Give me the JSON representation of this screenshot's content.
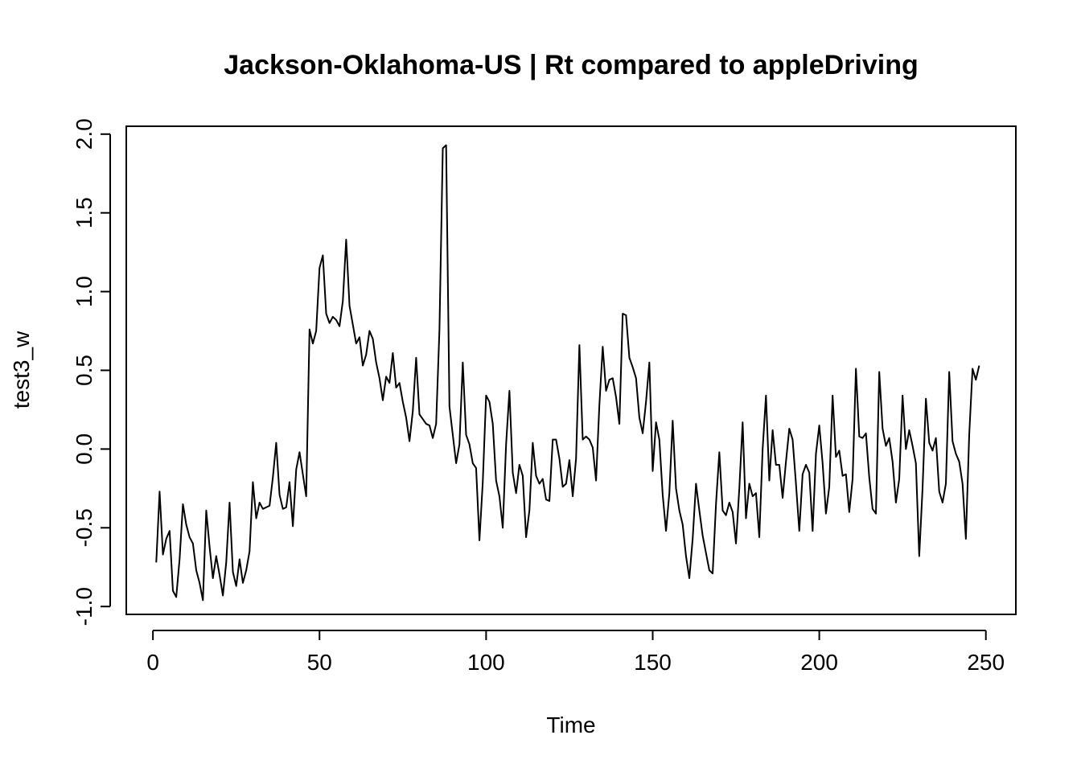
{
  "chart_data": {
    "type": "line",
    "title": "Jackson-Oklahoma-US | Rt compared to appleDriving",
    "xlabel": "Time",
    "ylabel": "test3_w",
    "xlim": [
      -8,
      259
    ],
    "ylim": [
      -1.05,
      2.05
    ],
    "x_ticks": [
      0,
      50,
      100,
      150,
      200,
      250
    ],
    "y_ticks": [
      -1.0,
      -0.5,
      0.0,
      0.5,
      1.0,
      1.5,
      2.0
    ],
    "x_tick_labels": [
      "0",
      "50",
      "100",
      "150",
      "200",
      "250"
    ],
    "y_tick_labels": [
      "-1.0",
      "-0.5",
      "0.0",
      "0.5",
      "1.0",
      "1.5",
      "2.0"
    ],
    "grid": false,
    "series": [
      {
        "color": "#000000",
        "x": [
          1,
          2,
          3,
          4,
          5,
          6,
          7,
          8,
          9,
          10,
          11,
          12,
          13,
          14,
          15,
          16,
          17,
          18,
          19,
          20,
          21,
          22,
          23,
          24,
          25,
          26,
          27,
          28,
          29,
          30,
          31,
          32,
          33,
          34,
          35,
          36,
          37,
          38,
          39,
          40,
          41,
          42,
          43,
          44,
          45,
          46,
          47,
          48,
          49,
          50,
          51,
          52,
          53,
          54,
          55,
          56,
          57,
          58,
          59,
          60,
          61,
          62,
          63,
          64,
          65,
          66,
          67,
          68,
          69,
          70,
          71,
          72,
          73,
          74,
          75,
          76,
          77,
          78,
          79,
          80,
          81,
          82,
          83,
          84,
          85,
          86,
          87,
          88,
          89,
          90,
          91,
          92,
          93,
          94,
          95,
          96,
          97,
          98,
          99,
          100,
          101,
          102,
          103,
          104,
          105,
          106,
          107,
          108,
          109,
          110,
          111,
          112,
          113,
          114,
          115,
          116,
          117,
          118,
          119,
          120,
          121,
          122,
          123,
          124,
          125,
          126,
          127,
          128,
          129,
          130,
          131,
          132,
          133,
          134,
          135,
          136,
          137,
          138,
          139,
          140,
          141,
          142,
          143,
          144,
          145,
          146,
          147,
          148,
          149,
          150,
          151,
          152,
          153,
          154,
          155,
          156,
          157,
          158,
          159,
          160,
          161,
          162,
          163,
          164,
          165,
          166,
          167,
          168,
          169,
          170,
          171,
          172,
          173,
          174,
          175,
          176,
          177,
          178,
          179,
          180,
          181,
          182,
          183,
          184,
          185,
          186,
          187,
          188,
          189,
          190,
          191,
          192,
          193,
          194,
          195,
          196,
          197,
          198,
          199,
          200,
          201,
          202,
          203,
          204,
          205,
          206,
          207,
          208,
          209,
          210,
          211,
          212,
          213,
          214,
          215,
          216,
          217,
          218,
          219,
          220,
          221,
          222,
          223,
          224,
          225,
          226,
          227,
          228,
          229,
          230,
          231,
          232,
          233,
          234,
          235,
          236,
          237,
          238,
          239,
          240,
          241,
          242,
          243,
          244,
          245,
          246,
          247,
          248
        ],
        "y": [
          -0.72,
          -0.27,
          -0.67,
          -0.57,
          -0.52,
          -0.9,
          -0.94,
          -0.7,
          -0.35,
          -0.48,
          -0.56,
          -0.6,
          -0.77,
          -0.85,
          -0.96,
          -0.39,
          -0.62,
          -0.82,
          -0.68,
          -0.8,
          -0.93,
          -0.72,
          -0.34,
          -0.78,
          -0.87,
          -0.7,
          -0.85,
          -0.77,
          -0.65,
          -0.21,
          -0.44,
          -0.34,
          -0.38,
          -0.37,
          -0.36,
          -0.18,
          0.04,
          -0.29,
          -0.38,
          -0.37,
          -0.21,
          -0.49,
          -0.13,
          -0.02,
          -0.16,
          -0.3,
          0.76,
          0.67,
          0.75,
          1.15,
          1.23,
          0.86,
          0.8,
          0.84,
          0.82,
          0.78,
          0.94,
          1.33,
          0.91,
          0.79,
          0.67,
          0.71,
          0.53,
          0.6,
          0.75,
          0.7,
          0.55,
          0.45,
          0.31,
          0.46,
          0.42,
          0.61,
          0.39,
          0.42,
          0.3,
          0.2,
          0.05,
          0.24,
          0.58,
          0.22,
          0.19,
          0.16,
          0.15,
          0.07,
          0.16,
          0.76,
          1.91,
          1.93,
          0.27,
          0.09,
          -0.09,
          0.03,
          0.55,
          0.09,
          0.03,
          -0.09,
          -0.12,
          -0.58,
          -0.21,
          0.34,
          0.3,
          0.16,
          -0.2,
          -0.3,
          -0.5,
          0.03,
          0.37,
          -0.15,
          -0.28,
          -0.1,
          -0.17,
          -0.56,
          -0.39,
          0.04,
          -0.17,
          -0.22,
          -0.19,
          -0.32,
          -0.33,
          0.06,
          0.06,
          -0.06,
          -0.24,
          -0.22,
          -0.07,
          -0.3,
          -0.06,
          0.66,
          0.06,
          0.08,
          0.06,
          0.01,
          -0.2,
          0.28,
          0.65,
          0.37,
          0.44,
          0.45,
          0.33,
          0.16,
          0.86,
          0.85,
          0.58,
          0.52,
          0.45,
          0.2,
          0.1,
          0.3,
          0.55,
          -0.14,
          0.17,
          0.06,
          -0.29,
          -0.52,
          -0.28,
          0.18,
          -0.25,
          -0.39,
          -0.48,
          -0.68,
          -0.82,
          -0.57,
          -0.22,
          -0.39,
          -0.55,
          -0.66,
          -0.77,
          -0.79,
          -0.35,
          -0.02,
          -0.39,
          -0.42,
          -0.34,
          -0.4,
          -0.6,
          -0.25,
          0.17,
          -0.44,
          -0.22,
          -0.3,
          -0.28,
          -0.56,
          0.0,
          0.34,
          -0.2,
          0.12,
          -0.1,
          -0.1,
          -0.31,
          -0.08,
          0.13,
          0.06,
          -0.22,
          -0.52,
          -0.16,
          -0.1,
          -0.15,
          -0.52,
          -0.03,
          0.15,
          -0.09,
          -0.41,
          -0.24,
          0.34,
          -0.05,
          -0.01,
          -0.17,
          -0.16,
          -0.4,
          -0.19,
          0.51,
          0.08,
          0.07,
          0.1,
          -0.18,
          -0.38,
          -0.41,
          0.49,
          0.13,
          0.02,
          0.07,
          -0.08,
          -0.34,
          -0.19,
          0.34,
          0.0,
          0.12,
          0.02,
          -0.09,
          -0.68,
          -0.25,
          0.32,
          0.04,
          -0.01,
          0.07,
          -0.27,
          -0.34,
          -0.22,
          0.49,
          0.05,
          -0.03,
          -0.08,
          -0.22,
          -0.57,
          0.09,
          0.51,
          0.44,
          0.53
        ]
      }
    ]
  }
}
